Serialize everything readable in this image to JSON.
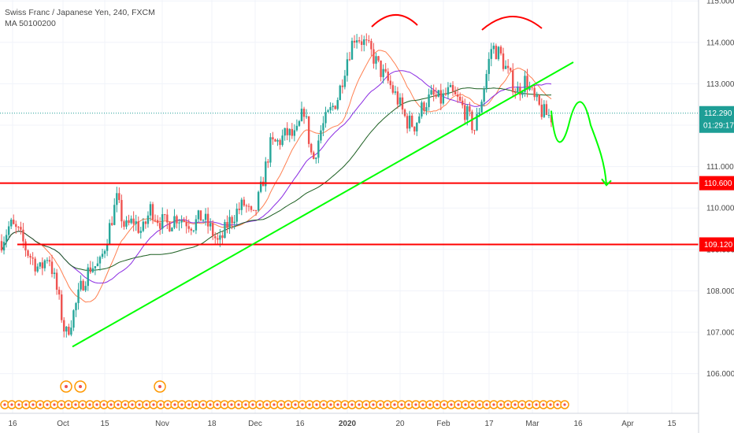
{
  "chart_data": {
    "type": "candlestick",
    "title": "Swiss Franc / Japanese Yen, 240, FXCM",
    "indicator_label": "MA 50100200",
    "price_axis": {
      "range": [
        105.2,
        115.3
      ],
      "ticks": [
        "106.000",
        "107.000",
        "108.000",
        "109.000",
        "110.000",
        "111.000",
        "112.000",
        "113.000",
        "114.000",
        "115.000"
      ]
    },
    "time_axis": {
      "labels": [
        "16",
        "Oct",
        "15",
        "Nov",
        "18",
        "Dec",
        "16",
        "2020",
        "20",
        "Feb",
        "17",
        "Mar",
        "16",
        "Apr",
        "15"
      ]
    },
    "current_price": {
      "value": 112.29,
      "label": "112.290",
      "countdown": "01:29:17",
      "color": "#1e9e96"
    },
    "levels": [
      {
        "value": 110.6,
        "label": "110.600",
        "color": "#ff0000"
      },
      {
        "value": 109.12,
        "label": "109.120",
        "color": "#ff0000"
      }
    ],
    "trendline": {
      "color": "#00ff00",
      "points": [
        [
          "Oct 8",
          106.65
        ],
        [
          "Mar 14",
          113.52
        ]
      ]
    },
    "projection": {
      "color": "#00ff00",
      "points": [
        [
          112.4,
          "now"
        ],
        [
          111.6,
          "+1d"
        ],
        [
          112.6,
          "+4d"
        ],
        [
          110.55,
          "+10d"
        ]
      ]
    },
    "head_and_shoulders_arcs": {
      "color": "#ff0000",
      "peaks": [
        "Jan 17",
        "Feb 20"
      ]
    },
    "moving_averages": [
      {
        "name": "MA 50",
        "color": "#ff7f50"
      },
      {
        "name": "MA 100",
        "color": "#8a2be2"
      },
      {
        "name": "MA 200",
        "color": "#1b5e20"
      }
    ],
    "candle_colors": {
      "up": "#26a69a",
      "down": "#ef5350"
    },
    "price_path": [
      {
        "x": 0,
        "y": 109.2
      },
      {
        "x": 2,
        "y": 109.6
      },
      {
        "x": 4,
        "y": 109.4
      },
      {
        "x": 6,
        "y": 108.95
      },
      {
        "x": 9,
        "y": 108.5
      },
      {
        "x": 11,
        "y": 108.9
      },
      {
        "x": 13,
        "y": 108.0
      },
      {
        "x": 15,
        "y": 106.9
      },
      {
        "x": 17,
        "y": 107.5
      },
      {
        "x": 19,
        "y": 108.2
      },
      {
        "x": 21,
        "y": 108.6
      },
      {
        "x": 23,
        "y": 108.6
      },
      {
        "x": 25,
        "y": 109.4
      },
      {
        "x": 27,
        "y": 110.2
      },
      {
        "x": 29,
        "y": 109.5
      },
      {
        "x": 31,
        "y": 109.7
      },
      {
        "x": 33,
        "y": 109.4
      },
      {
        "x": 35,
        "y": 110.0
      },
      {
        "x": 37,
        "y": 109.7
      },
      {
        "x": 39,
        "y": 109.6
      },
      {
        "x": 41,
        "y": 109.8
      },
      {
        "x": 43,
        "y": 109.7
      },
      {
        "x": 45,
        "y": 109.6
      },
      {
        "x": 47,
        "y": 109.8
      },
      {
        "x": 49,
        "y": 109.5
      },
      {
        "x": 51,
        "y": 109.1
      },
      {
        "x": 53,
        "y": 109.6
      },
      {
        "x": 55,
        "y": 109.9
      },
      {
        "x": 57,
        "y": 110.1
      },
      {
        "x": 59,
        "y": 109.7
      },
      {
        "x": 61,
        "y": 110.5
      },
      {
        "x": 63,
        "y": 111.5
      },
      {
        "x": 65,
        "y": 111.6
      },
      {
        "x": 67,
        "y": 111.8
      },
      {
        "x": 69,
        "y": 111.7
      },
      {
        "x": 71,
        "y": 112.4
      },
      {
        "x": 73,
        "y": 111.1
      },
      {
        "x": 75,
        "y": 111.9
      },
      {
        "x": 77,
        "y": 112.3
      },
      {
        "x": 79,
        "y": 112.7
      },
      {
        "x": 81,
        "y": 113.6
      },
      {
        "x": 83,
        "y": 114.2
      },
      {
        "x": 85,
        "y": 114.0
      },
      {
        "x": 87,
        "y": 113.7
      },
      {
        "x": 89,
        "y": 113.3
      },
      {
        "x": 91,
        "y": 113.0
      },
      {
        "x": 93,
        "y": 112.6
      },
      {
        "x": 95,
        "y": 112.1
      },
      {
        "x": 97,
        "y": 112.0
      },
      {
        "x": 99,
        "y": 112.5
      },
      {
        "x": 101,
        "y": 112.7
      },
      {
        "x": 103,
        "y": 112.6
      },
      {
        "x": 105,
        "y": 112.8
      },
      {
        "x": 107,
        "y": 112.6
      },
      {
        "x": 109,
        "y": 112.3
      },
      {
        "x": 111,
        "y": 111.9
      },
      {
        "x": 113,
        "y": 112.8
      },
      {
        "x": 115,
        "y": 113.9
      },
      {
        "x": 117,
        "y": 113.7
      },
      {
        "x": 119,
        "y": 113.2
      },
      {
        "x": 121,
        "y": 112.8
      },
      {
        "x": 123,
        "y": 113.1
      },
      {
        "x": 125,
        "y": 112.6
      },
      {
        "x": 127,
        "y": 112.3
      },
      {
        "x": 129,
        "y": 112.2
      }
    ]
  }
}
